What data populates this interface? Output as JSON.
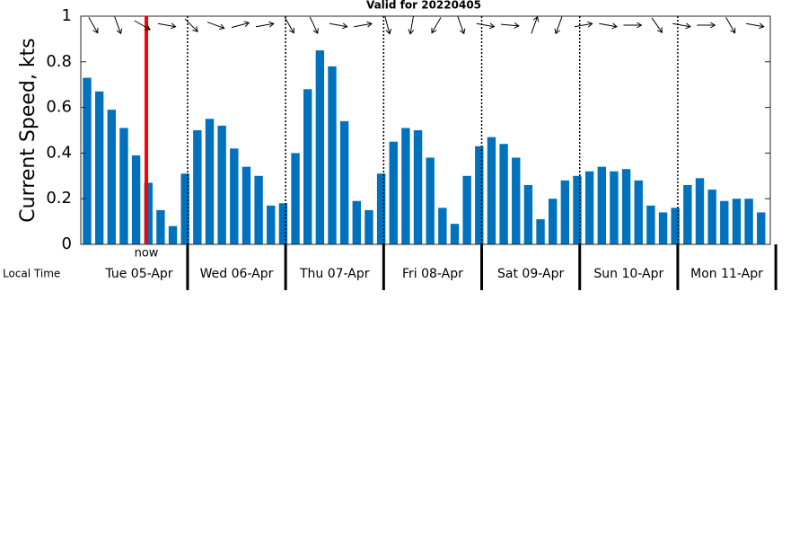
{
  "chart_data": {
    "type": "bar",
    "title": "Valid for 20220405",
    "y_label": "Current Speed, kts",
    "x_label": "Local Time",
    "now_label": "now",
    "day_labels": [
      "Tue 05-Apr",
      "Wed 06-Apr",
      "Thu 07-Apr",
      "Fri 08-Apr",
      "Sat 09-Apr",
      "Sun 10-Apr",
      "Mon 11-Apr"
    ],
    "values": [
      0.73,
      0.67,
      0.59,
      0.51,
      0.39,
      0.27,
      0.15,
      0.08,
      0.31,
      0.5,
      0.55,
      0.52,
      0.42,
      0.34,
      0.3,
      0.17,
      0.18,
      0.4,
      0.68,
      0.85,
      0.78,
      0.54,
      0.19,
      0.15,
      0.31,
      0.45,
      0.51,
      0.5,
      0.38,
      0.16,
      0.09,
      0.3,
      0.43,
      0.47,
      0.44,
      0.38,
      0.26,
      0.11,
      0.2,
      0.28,
      0.3,
      0.32,
      0.34,
      0.32,
      0.33,
      0.28,
      0.17,
      0.14,
      0.16,
      0.26,
      0.29,
      0.24,
      0.19,
      0.2,
      0.2,
      0.14
    ],
    "directions": [
      150,
      160,
      120,
      100,
      135,
      110,
      75,
      80,
      150,
      155,
      100,
      80,
      165,
      190,
      210,
      160,
      100,
      95,
      20,
      200,
      80,
      100,
      90,
      145,
      100,
      90,
      150,
      100
    ],
    "color": "#0072bd",
    "ylim": [
      0,
      1
    ],
    "yticks": [
      0,
      0.2,
      0.4,
      0.6,
      0.8,
      1
    ]
  }
}
